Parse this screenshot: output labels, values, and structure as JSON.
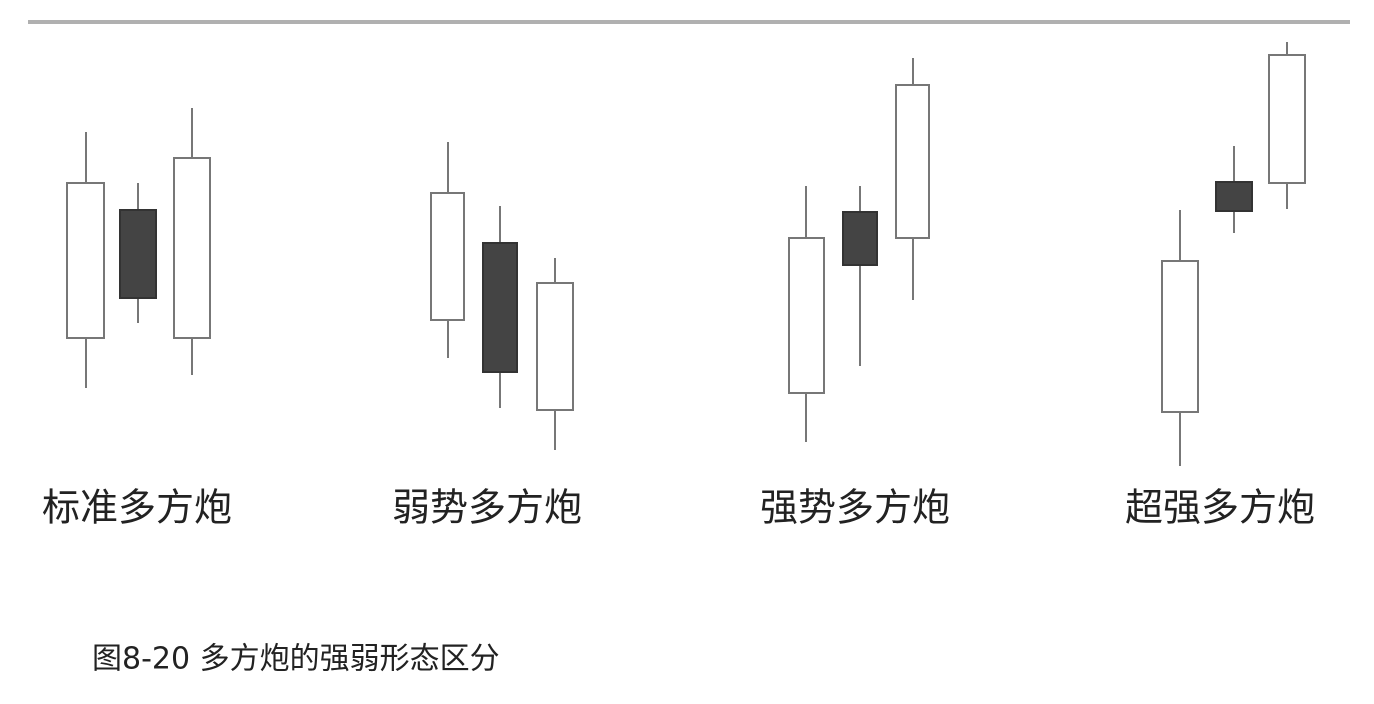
{
  "patterns": [
    {
      "label": "标准多方炮"
    },
    {
      "label": "弱势多方炮"
    },
    {
      "label": "强势多方炮"
    },
    {
      "label": "超强多方炮"
    }
  ],
  "caption": "图8-20 多方炮的强弱形态区分"
}
